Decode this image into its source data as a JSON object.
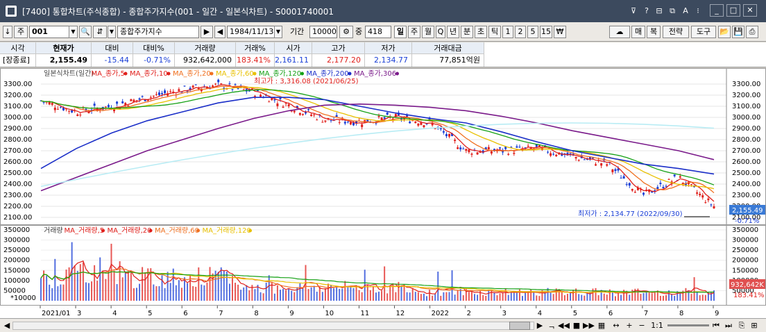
{
  "window": {
    "title": "[7400] 통합차트(주식종합) - 종합주가지수(001 - 일간 - 일본식차트) - S0001740001",
    "icons": [
      "pin-icon",
      "help-icon",
      "window-icon",
      "copy-icon",
      "font-icon",
      "link-icon"
    ],
    "controls": {
      "minimize": "_",
      "maximize": "□",
      "close": "✕"
    }
  },
  "toolbar": {
    "code_value": "001",
    "market_label": "주",
    "name_value": "종합주가지수",
    "date_value": "1984/11/13",
    "period_label": "기간",
    "period_value": "10000",
    "count_label": "중",
    "count_value": "418",
    "period_buttons": [
      "일",
      "주",
      "월",
      "Q",
      "년",
      "분",
      "초",
      "틱",
      "1",
      "2",
      "5",
      "15",
      "₩"
    ],
    "selected_period": "일",
    "right_buttons": {
      "sell": "매",
      "buy": "복",
      "strategy": "전략",
      "tools": "도구"
    }
  },
  "quote": {
    "headers": [
      "시각",
      "현재가",
      "대비",
      "대비%",
      "거래량",
      "거래%",
      "시가",
      "고가",
      "저가",
      "거래대금"
    ],
    "values": [
      "[장종료]",
      "2,155.49",
      "-15.44",
      "-0.71%",
      "932,642,000",
      "183.41%",
      "2,161.11",
      "2,177.20",
      "2,134.77",
      "77,851억원"
    ]
  },
  "price_panel": {
    "legend": [
      {
        "text": "일본식차트(일간)",
        "color": "#444444"
      },
      {
        "text": "MA_종가,5",
        "color": "#e0201c"
      },
      {
        "text": "MA_종가,10",
        "color": "#e0201c"
      },
      {
        "text": "MA_종가,20",
        "color": "#f07020"
      },
      {
        "text": "MA_종가,60",
        "color": "#e8c000"
      },
      {
        "text": "MA_종가,120",
        "color": "#14a014"
      },
      {
        "text": "MA_종가,200",
        "color": "#1a2ec8"
      },
      {
        "text": "MA_종가,306",
        "color": "#7a1a8a"
      }
    ],
    "high_annotation": "최고가 : 3,316.08 (2021/06/25)",
    "low_annotation": "최저가 : 2,134.77 (2022/09/30)",
    "last_price": "2,155.49",
    "last_change": "-0.71%",
    "y_ticks": [
      "3300.00",
      "3200.00",
      "3100.00",
      "3000.00",
      "2900.00",
      "2800.00",
      "2700.00",
      "2600.00",
      "2500.00",
      "2400.00",
      "2300.00",
      "2200.00",
      "2100.00"
    ]
  },
  "volume_panel": {
    "legend": [
      {
        "text": "거래량",
        "color": "#444444"
      },
      {
        "text": "MA_거래량,5",
        "color": "#e0201c"
      },
      {
        "text": "MA_거래량,20",
        "color": "#e0201c"
      },
      {
        "text": "MA_거래량,60",
        "color": "#f07020"
      },
      {
        "text": "MA_거래량,120",
        "color": "#e8c000"
      }
    ],
    "unit_label": "*10000",
    "y_ticks": [
      "350000",
      "300000",
      "250000",
      "200000",
      "150000",
      "100000",
      "50000"
    ],
    "last_volume": "932,642K",
    "last_volume_pct": "183.41%"
  },
  "x_axis": [
    "2021/01",
    "3",
    "4",
    "5",
    "6",
    "7",
    "8",
    "9",
    "10",
    "11",
    "12",
    "2022",
    "2",
    "3",
    "4",
    "5",
    "6",
    "7",
    "8",
    "9"
  ],
  "bottom_bar": {
    "zoom": "1:1"
  },
  "chart_data": {
    "type": "line",
    "x": [
      "2021/01",
      "2021/03",
      "2021/04",
      "2021/05",
      "2021/06",
      "2021/07",
      "2021/08",
      "2021/09",
      "2021/10",
      "2021/11",
      "2021/12",
      "2022/01",
      "2022/02",
      "2022/03",
      "2022/04",
      "2022/05",
      "2022/06",
      "2022/07",
      "2022/08",
      "2022/09"
    ],
    "series": [
      {
        "name": "일본식차트(일간)",
        "values": [
          3150,
          3050,
          3100,
          3180,
          3250,
          3290,
          3230,
          3110,
          2980,
          2960,
          3000,
          2950,
          2700,
          2700,
          2720,
          2650,
          2580,
          2300,
          2460,
          2200
        ]
      },
      {
        "name": "MA_종가,200",
        "values": [
          2540,
          2720,
          2860,
          2970,
          3050,
          3130,
          3180,
          3180,
          3160,
          3100,
          3040,
          2990,
          2950,
          2870,
          2780,
          2700,
          2640,
          2580,
          2540,
          2490
        ]
      },
      {
        "name": "MA_종가,306",
        "values": [
          2340,
          2460,
          2580,
          2700,
          2800,
          2900,
          2990,
          3060,
          3110,
          3120,
          3110,
          3090,
          3060,
          3010,
          2950,
          2880,
          2820,
          2760,
          2700,
          2620
        ]
      }
    ],
    "ylim": [
      2100,
      3350
    ]
  }
}
